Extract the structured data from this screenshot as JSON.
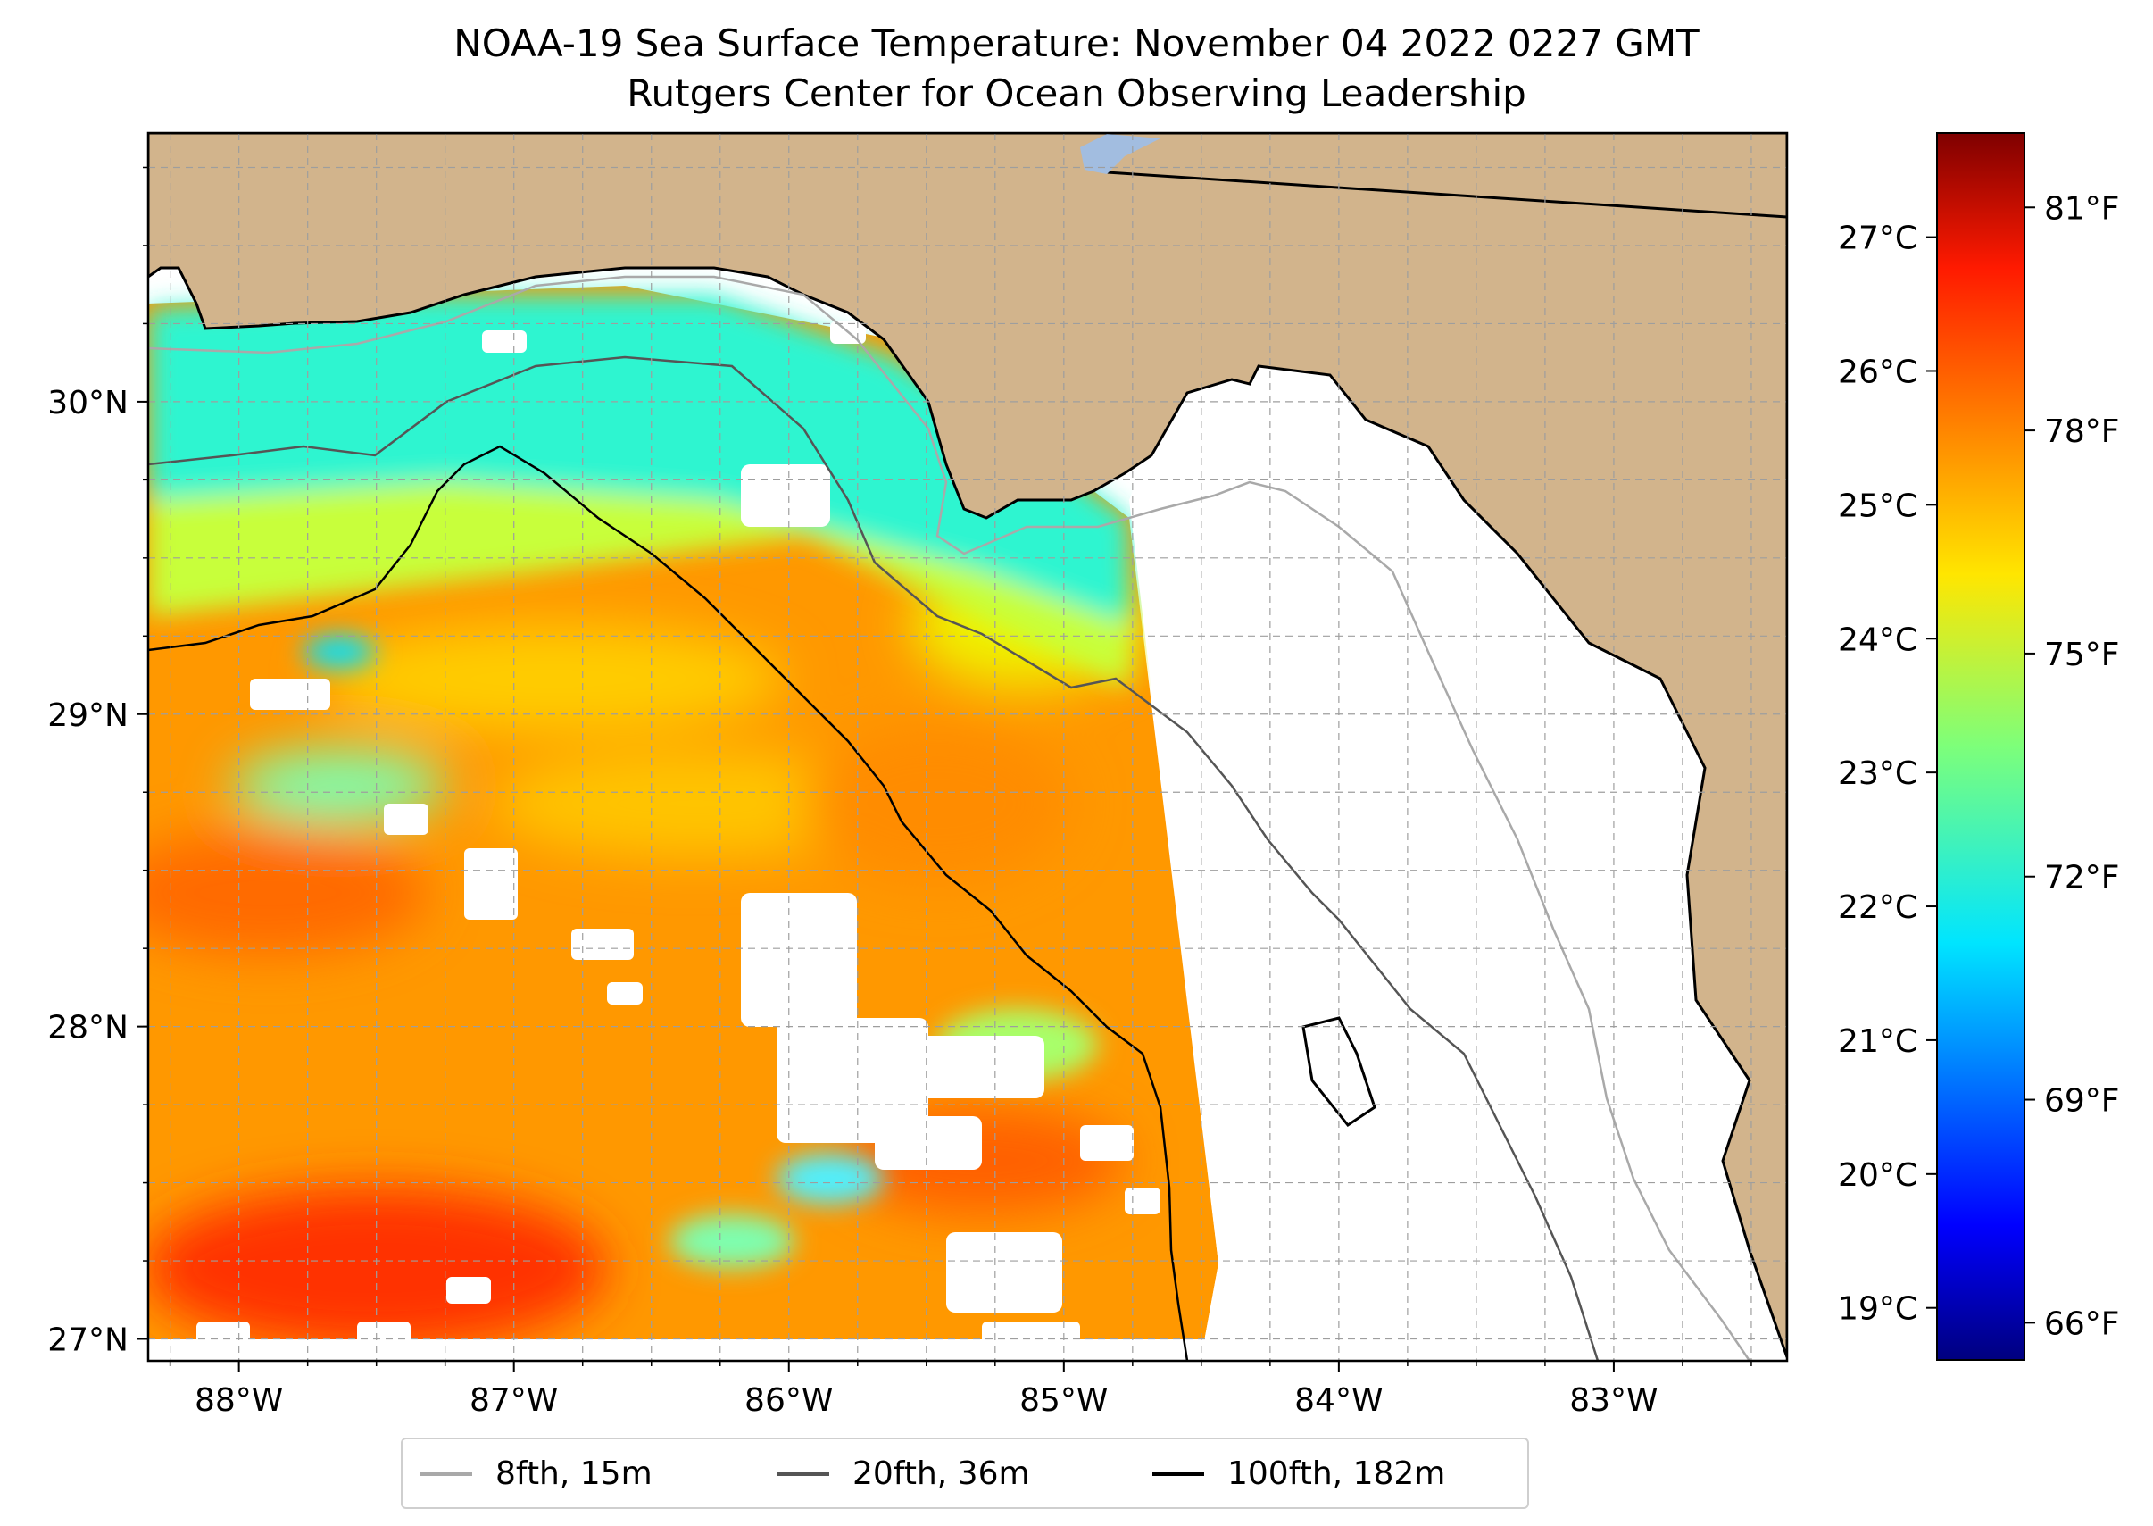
{
  "title_line1": "NOAA-19 Sea Surface Temperature: November 04 2022 0227 GMT",
  "title_line2": "Rutgers Center for Ocean Observing Leadership",
  "map": {
    "lon_range": [
      -88.33,
      -82.37
    ],
    "lat_range": [
      26.93,
      30.86
    ],
    "lon_ticks": [
      {
        "value": -88,
        "label": "88°W"
      },
      {
        "value": -87,
        "label": "87°W"
      },
      {
        "value": -86,
        "label": "86°W"
      },
      {
        "value": -85,
        "label": "85°W"
      },
      {
        "value": -84,
        "label": "84°W"
      },
      {
        "value": -83,
        "label": "83°W"
      }
    ],
    "lat_ticks": [
      {
        "value": 30,
        "label": "30°N"
      },
      {
        "value": 29,
        "label": "29°N"
      },
      {
        "value": 28,
        "label": "28°N"
      },
      {
        "value": 27,
        "label": "27°N"
      }
    ],
    "land_color": "#d2b48c",
    "no_data_color": "#ffffff",
    "grid": "dashed"
  },
  "colorbar": {
    "colormap": "jet",
    "celsius_ticks": [
      "27°C",
      "26°C",
      "25°C",
      "24°C",
      "23°C",
      "22°C",
      "21°C",
      "20°C",
      "19°C"
    ],
    "fahrenheit_ticks": [
      "81°F",
      "78°F",
      "75°F",
      "72°F",
      "69°F",
      "66°F"
    ],
    "min_f": 65.5,
    "max_f": 82.0
  },
  "legend": {
    "items": [
      {
        "label": "8fth, 15m",
        "color": "#a9a9a9"
      },
      {
        "label": "20fth, 36m",
        "color": "#555555"
      },
      {
        "label": "100fth, 182m",
        "color": "#000000"
      }
    ]
  }
}
